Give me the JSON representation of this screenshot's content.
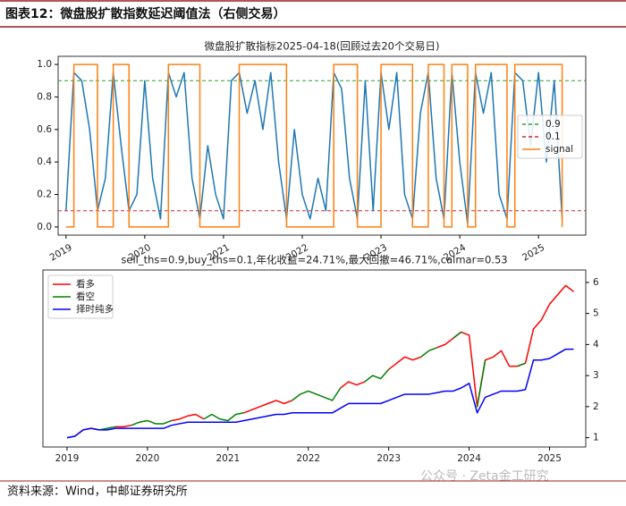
{
  "header": {
    "title": "图表12：微盘股扩散指数延迟阈值法（右侧交易）"
  },
  "chart_data": [
    {
      "type": "line",
      "title": "微盘股扩散指标2025-04-18(回顾过去20个交易日)",
      "x": [
        2019,
        2019.1,
        2019.2,
        2019.3,
        2019.4,
        2019.5,
        2019.6,
        2019.7,
        2019.8,
        2019.9,
        2020,
        2020.1,
        2020.2,
        2020.3,
        2020.4,
        2020.5,
        2020.6,
        2020.7,
        2020.8,
        2020.9,
        2021,
        2021.1,
        2021.2,
        2021.3,
        2021.4,
        2021.5,
        2021.6,
        2021.7,
        2021.8,
        2021.9,
        2022,
        2022.1,
        2022.2,
        2022.3,
        2022.4,
        2022.5,
        2022.6,
        2022.7,
        2022.8,
        2022.9,
        2023,
        2023.1,
        2023.2,
        2023.3,
        2023.4,
        2023.5,
        2023.6,
        2023.7,
        2023.8,
        2023.9,
        2024,
        2024.1,
        2024.2,
        2024.3,
        2024.4,
        2024.5,
        2024.6,
        2024.7,
        2024.8,
        2024.9,
        2025,
        2025.1,
        2025.2,
        2025.3
      ],
      "xlim": [
        2018.9,
        2025.6
      ],
      "xticks": [
        2019,
        2020,
        2021,
        2022,
        2023,
        2024,
        2025
      ],
      "ylim": [
        -0.05,
        1.05
      ],
      "yticks": [
        {
          "value": 0,
          "label": "0.0"
        },
        0.2,
        0.4,
        0.6,
        0.8,
        {
          "value": 1,
          "label": "1.0"
        }
      ],
      "y_axis": "left",
      "legend": "center right",
      "hlines": [
        {
          "name": "0.9",
          "value": 0.9,
          "color": "#2ca02c"
        },
        {
          "name": "0.1",
          "value": 0.1,
          "color": "#d62728"
        }
      ],
      "series": [
        {
          "color": "#1f77b4",
          "values": [
            0.1,
            0.95,
            0.9,
            0.6,
            0.1,
            0.3,
            0.95,
            0.5,
            0.1,
            0.2,
            0.9,
            0.3,
            0.05,
            0.95,
            0.8,
            0.95,
            0.3,
            0.05,
            0.5,
            0.2,
            0.05,
            0.9,
            0.95,
            0.7,
            0.9,
            0.6,
            0.95,
            0.4,
            0.05,
            0.6,
            0.2,
            0.05,
            0.3,
            0.1,
            0.95,
            0.85,
            0.3,
            0.05,
            0.9,
            0.1,
            0.95,
            0.6,
            0.95,
            0.2,
            0.05,
            0.7,
            0.95,
            0.3,
            0.05,
            0.95,
            0.4,
            0.02,
            0.95,
            0.7,
            0.95,
            0.2,
            0.05,
            0.95,
            0.9,
            0.5,
            0.95,
            0.4,
            0.9,
            0.05
          ]
        },
        {
          "name": "signal",
          "color": "#ff7f0e",
          "drawstyle": "steps-post",
          "values": [
            0,
            1,
            1,
            1,
            0,
            0,
            1,
            1,
            0,
            0,
            0,
            0,
            0,
            1,
            1,
            1,
            1,
            0,
            0,
            0,
            0,
            0,
            1,
            1,
            1,
            1,
            1,
            1,
            0,
            0,
            0,
            0,
            0,
            0,
            1,
            1,
            1,
            0,
            0,
            0,
            1,
            1,
            1,
            1,
            0,
            0,
            1,
            1,
            0,
            1,
            1,
            0,
            1,
            1,
            1,
            1,
            0,
            1,
            1,
            1,
            1,
            1,
            1,
            0
          ]
        }
      ]
    },
    {
      "type": "line",
      "title": "sell_ths=0.9,buy_ths=0.1,年化收益=24.71%,最大回撤=46.71%,calmar=0.53",
      "x": [
        2019,
        2019.1,
        2019.2,
        2019.3,
        2019.4,
        2019.5,
        2019.6,
        2019.7,
        2019.8,
        2019.9,
        2020,
        2020.1,
        2020.2,
        2020.3,
        2020.4,
        2020.5,
        2020.6,
        2020.7,
        2020.8,
        2020.9,
        2021,
        2021.1,
        2021.2,
        2021.3,
        2021.4,
        2021.5,
        2021.6,
        2021.7,
        2021.8,
        2021.9,
        2022,
        2022.1,
        2022.2,
        2022.3,
        2022.4,
        2022.5,
        2022.6,
        2022.7,
        2022.8,
        2022.9,
        2023,
        2023.1,
        2023.2,
        2023.3,
        2023.4,
        2023.5,
        2023.6,
        2023.7,
        2023.8,
        2023.9,
        2024,
        2024.1,
        2024.2,
        2024.3,
        2024.4,
        2024.5,
        2024.6,
        2024.7,
        2024.8,
        2024.9,
        2025,
        2025.1,
        2025.2,
        2025.3
      ],
      "xlim": [
        2018.7,
        2025.45
      ],
      "xticks": [
        2019,
        2020,
        2021,
        2022,
        2023,
        2024,
        2025
      ],
      "ylim": [
        0.7,
        6.4
      ],
      "yticks": [
        1,
        2,
        3,
        4,
        5,
        6
      ],
      "y_axis": "right",
      "legend": "upper left",
      "series": [
        {
          "name": "看多",
          "color": "#ff0000",
          "values": [
            null,
            1.05,
            1.25,
            1.3,
            1.25,
            null,
            1.35,
            1.35,
            1.4,
            null,
            null,
            null,
            null,
            1.55,
            1.6,
            1.7,
            1.75,
            1.6,
            null,
            null,
            null,
            null,
            1.8,
            1.9,
            2.0,
            2.1,
            2.2,
            2.1,
            2.2,
            null,
            null,
            null,
            null,
            null,
            2.6,
            2.8,
            2.7,
            2.8,
            null,
            null,
            3.2,
            3.4,
            3.6,
            3.5,
            3.6,
            null,
            3.9,
            4.0,
            4.2,
            4.4,
            4.3,
            2.0,
            3.5,
            3.6,
            3.8,
            3.3,
            3.3,
            3.4,
            4.5,
            4.8,
            5.3,
            5.6,
            5.9,
            5.7
          ]
        },
        {
          "name": "看空",
          "color": "#008000",
          "values": [
            1.0,
            1.05,
            null,
            null,
            1.25,
            1.3,
            1.35,
            null,
            1.4,
            1.5,
            1.55,
            1.45,
            1.45,
            1.55,
            null,
            null,
            null,
            1.6,
            1.75,
            1.6,
            1.55,
            1.75,
            1.8,
            null,
            null,
            null,
            null,
            null,
            2.2,
            2.4,
            2.5,
            2.4,
            2.3,
            2.2,
            2.6,
            null,
            null,
            2.8,
            3.0,
            2.9,
            3.2,
            null,
            null,
            null,
            3.6,
            3.8,
            3.9,
            null,
            4.2,
            4.4,
            null,
            2.0,
            3.5,
            null,
            null,
            null,
            3.3,
            3.4,
            null,
            null,
            null,
            null,
            null,
            5.7
          ]
        },
        {
          "name": "择时纯多",
          "color": "#0000ff",
          "values": [
            1.0,
            1.05,
            1.25,
            1.3,
            1.25,
            1.25,
            1.3,
            1.3,
            1.3,
            1.3,
            1.3,
            1.3,
            1.3,
            1.4,
            1.45,
            1.5,
            1.5,
            1.5,
            1.5,
            1.5,
            1.5,
            1.5,
            1.55,
            1.6,
            1.65,
            1.7,
            1.75,
            1.75,
            1.8,
            1.8,
            1.8,
            1.8,
            1.8,
            1.8,
            1.95,
            2.1,
            2.1,
            2.1,
            2.1,
            2.1,
            2.2,
            2.3,
            2.4,
            2.4,
            2.4,
            2.4,
            2.45,
            2.5,
            2.5,
            2.6,
            2.75,
            1.8,
            2.3,
            2.4,
            2.5,
            2.5,
            2.5,
            2.55,
            3.5,
            3.5,
            3.55,
            3.7,
            3.85,
            3.85
          ]
        }
      ]
    }
  ],
  "watermark": "公众号 · Zeta金工研究",
  "footer": {
    "source": "资料来源：Wind，中邮证券研究所"
  }
}
